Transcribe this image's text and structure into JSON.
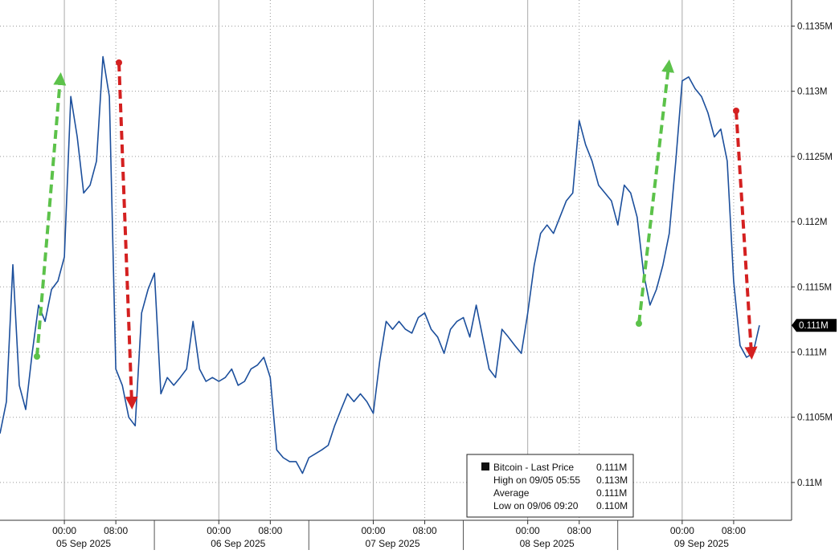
{
  "chart_data": {
    "type": "line",
    "x": [
      "2025-09-04 14:00",
      "2025-09-04 15:00",
      "2025-09-04 16:00",
      "2025-09-04 17:00",
      "2025-09-04 18:00",
      "2025-09-04 19:00",
      "2025-09-04 20:00",
      "2025-09-04 21:00",
      "2025-09-04 22:00",
      "2025-09-04 23:00",
      "2025-09-05 00:00",
      "2025-09-05 01:00",
      "2025-09-05 02:00",
      "2025-09-05 03:00",
      "2025-09-05 04:00",
      "2025-09-05 05:00",
      "2025-09-05 06:00",
      "2025-09-05 07:00",
      "2025-09-05 08:00",
      "2025-09-05 09:00",
      "2025-09-05 10:00",
      "2025-09-05 11:00",
      "2025-09-05 12:00",
      "2025-09-05 13:00",
      "2025-09-05 14:00",
      "2025-09-05 15:00",
      "2025-09-05 16:00",
      "2025-09-05 17:00",
      "2025-09-05 18:00",
      "2025-09-05 19:00",
      "2025-09-05 20:00",
      "2025-09-05 21:00",
      "2025-09-05 22:00",
      "2025-09-05 23:00",
      "2025-09-06 00:00",
      "2025-09-06 01:00",
      "2025-09-06 02:00",
      "2025-09-06 03:00",
      "2025-09-06 04:00",
      "2025-09-06 05:00",
      "2025-09-06 06:00",
      "2025-09-06 07:00",
      "2025-09-06 08:00",
      "2025-09-06 09:00",
      "2025-09-06 10:00",
      "2025-09-06 11:00",
      "2025-09-06 12:00",
      "2025-09-06 13:00",
      "2025-09-06 14:00",
      "2025-09-06 15:00",
      "2025-09-06 16:00",
      "2025-09-06 17:00",
      "2025-09-06 18:00",
      "2025-09-06 19:00",
      "2025-09-06 20:00",
      "2025-09-06 21:00",
      "2025-09-06 22:00",
      "2025-09-06 23:00",
      "2025-09-07 00:00",
      "2025-09-07 01:00",
      "2025-09-07 02:00",
      "2025-09-07 03:00",
      "2025-09-07 04:00",
      "2025-09-07 05:00",
      "2025-09-07 06:00",
      "2025-09-07 07:00",
      "2025-09-07 08:00",
      "2025-09-07 09:00",
      "2025-09-07 10:00",
      "2025-09-07 11:00",
      "2025-09-07 12:00",
      "2025-09-07 13:00",
      "2025-09-07 14:00",
      "2025-09-07 15:00",
      "2025-09-07 16:00",
      "2025-09-07 17:00",
      "2025-09-07 18:00",
      "2025-09-07 19:00",
      "2025-09-07 20:00",
      "2025-09-07 21:00",
      "2025-09-07 22:00",
      "2025-09-07 23:00",
      "2025-09-08 00:00",
      "2025-09-08 01:00",
      "2025-09-08 02:00",
      "2025-09-08 03:00",
      "2025-09-08 04:00",
      "2025-09-08 05:00",
      "2025-09-08 06:00",
      "2025-09-08 07:00",
      "2025-09-08 08:00",
      "2025-09-08 09:00",
      "2025-09-08 10:00",
      "2025-09-08 11:00",
      "2025-09-08 12:00",
      "2025-09-08 13:00",
      "2025-09-08 14:00",
      "2025-09-08 15:00",
      "2025-09-08 16:00",
      "2025-09-08 17:00",
      "2025-09-08 18:00",
      "2025-09-08 19:00",
      "2025-09-08 20:00",
      "2025-09-08 21:00",
      "2025-09-08 22:00",
      "2025-09-08 23:00",
      "2025-09-09 00:00",
      "2025-09-09 01:00",
      "2025-09-09 02:00",
      "2025-09-09 03:00",
      "2025-09-09 04:00",
      "2025-09-09 05:00",
      "2025-09-09 06:00",
      "2025-09-09 07:00",
      "2025-09-09 08:00",
      "2025-09-09 09:00",
      "2025-09-09 10:00",
      "2025-09-09 11:00",
      "2025-09-09 12:00"
    ],
    "series": [
      {
        "name": "Bitcoin - Last Price",
        "color": "#1c4f9c",
        "values": [
          110375,
          110620,
          111670,
          110745,
          110560,
          110990,
          111360,
          111235,
          111480,
          111545,
          111730,
          112960,
          112650,
          112220,
          112280,
          112465,
          113265,
          112960,
          110870,
          110745,
          110500,
          110435,
          111300,
          111480,
          111605,
          110680,
          110805,
          110745,
          110805,
          110870,
          111235,
          110870,
          110775,
          110805,
          110775,
          110805,
          110870,
          110745,
          110775,
          110870,
          110900,
          110960,
          110805,
          110250,
          110190,
          110160,
          110160,
          110070,
          110190,
          110220,
          110250,
          110285,
          110435,
          110560,
          110680,
          110620,
          110680,
          110620,
          110530,
          110930,
          111235,
          111175,
          111235,
          111175,
          111145,
          111265,
          111300,
          111175,
          111115,
          110990,
          111175,
          111235,
          111265,
          111115,
          111360,
          111115,
          110870,
          110805,
          111175,
          111115,
          111050,
          110990,
          111300,
          111665,
          111910,
          111975,
          111910,
          112035,
          112160,
          112220,
          112775,
          112590,
          112465,
          112280,
          112220,
          112160,
          111975,
          112280,
          112220,
          112035,
          111605,
          111360,
          111480,
          111665,
          111910,
          112465,
          113080,
          113110,
          113020,
          112960,
          112835,
          112650,
          112710,
          112465,
          111545,
          111050,
          110960,
          110990,
          111205
        ]
      }
    ],
    "xlim": [
      "2025-09-04 14:00",
      "2025-09-09 17:00"
    ],
    "xticks": [
      {
        "value": "2025-09-05 00:00",
        "label": "00:00"
      },
      {
        "value": "2025-09-05 08:00",
        "label": "08:00"
      },
      {
        "value": "2025-09-06 00:00",
        "label": "00:00"
      },
      {
        "value": "2025-09-06 08:00",
        "label": "08:00"
      },
      {
        "value": "2025-09-07 00:00",
        "label": "00:00"
      },
      {
        "value": "2025-09-07 08:00",
        "label": "08:00"
      },
      {
        "value": "2025-09-08 00:00",
        "label": "00:00"
      },
      {
        "value": "2025-09-08 08:00",
        "label": "08:00"
      },
      {
        "value": "2025-09-09 00:00",
        "label": "00:00"
      },
      {
        "value": "2025-09-09 08:00",
        "label": "08:00"
      }
    ],
    "xdates": [
      "05 Sep 2025",
      "06 Sep 2025",
      "07 Sep 2025",
      "08 Sep 2025",
      "09 Sep 2025"
    ],
    "ylim": [
      109710,
      113700
    ],
    "yticks": [
      {
        "value": 110000,
        "label": "0.11M"
      },
      {
        "value": 110500,
        "label": "0.1105M"
      },
      {
        "value": 111000,
        "label": "0.111M"
      },
      {
        "value": 111500,
        "label": "0.1115M"
      },
      {
        "value": 112000,
        "label": "0.112M"
      },
      {
        "value": 112500,
        "label": "0.1125M"
      },
      {
        "value": 113000,
        "label": "0.113M"
      },
      {
        "value": 113500,
        "label": "0.1135M"
      }
    ],
    "last_price_label": "0.111M",
    "grid": true,
    "legend": [
      {
        "label": "Bitcoin - Last Price",
        "value": "0.111M"
      },
      {
        "label": "High on 09/05 05:55",
        "value": "0.113M"
      },
      {
        "label": "Average",
        "value": "0.111M"
      },
      {
        "label": "Low on 09/06 09:20",
        "value": "0.110M"
      }
    ]
  }
}
